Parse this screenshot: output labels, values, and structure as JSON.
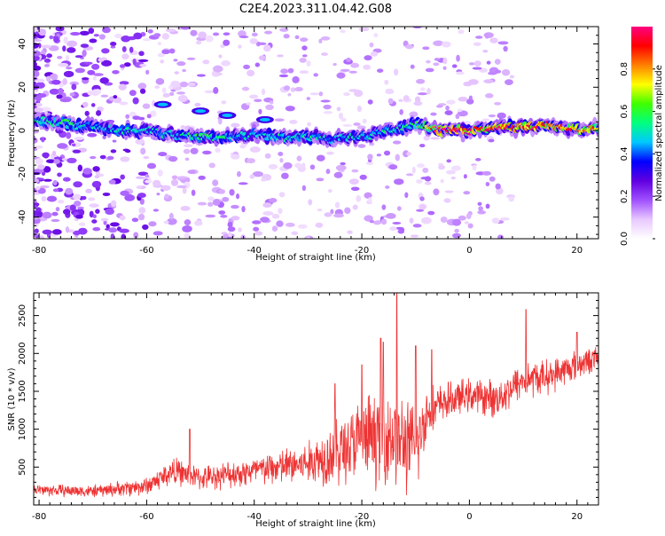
{
  "title": "C2E4.2023.311.04.42.G08",
  "chart_data": [
    {
      "type": "heatmap",
      "xlabel": "Height of straight line (km)",
      "ylabel": "Frequency (Hz)",
      "xlim": [
        -81,
        24
      ],
      "ylim": [
        -50,
        48
      ],
      "x_ticks": [
        -80,
        -60,
        -40,
        -20,
        0,
        20
      ],
      "y_ticks": [
        -40,
        -20,
        0,
        20,
        40
      ],
      "colorbar": {
        "label": "Normalized spectral amplitude",
        "range": [
          0,
          1
        ],
        "ticks": [
          0.0,
          0.2,
          0.4,
          0.6,
          0.8
        ],
        "tick_labels": [
          "0.0",
          "0.2",
          "0.4",
          "0.6",
          "0.8"
        ],
        "colors": [
          "#ffffff",
          "#e8c8ff",
          "#a050ff",
          "#6000e0",
          "#0000ff",
          "#00c8ff",
          "#00ff80",
          "#40ff00",
          "#ffff00",
          "#ff8000",
          "#ff0000",
          "#ff0080"
        ]
      },
      "ridge": {
        "x": [
          -81,
          -76,
          -72,
          -68,
          -64,
          -60,
          -55,
          -50,
          -45,
          -40,
          -35,
          -30,
          -25,
          -20,
          -15,
          -10,
          -7,
          -5,
          0,
          5,
          10,
          15,
          20,
          24
        ],
        "y": [
          4,
          4,
          2,
          1,
          0,
          0,
          -2,
          -3,
          -3,
          -2,
          -3,
          -3,
          -4,
          -3,
          0,
          3,
          1,
          0,
          0,
          1,
          2,
          2,
          1,
          1
        ],
        "amplitude": [
          0.5,
          0.55,
          0.5,
          0.45,
          0.5,
          0.45,
          0.5,
          0.55,
          0.5,
          0.45,
          0.5,
          0.5,
          0.45,
          0.5,
          0.5,
          0.55,
          0.8,
          0.95,
          0.9,
          0.9,
          0.95,
          0.9,
          0.85,
          0.8
        ]
      }
    },
    {
      "type": "line",
      "xlabel": "Height of straight line (km)",
      "ylabel": "SNR (10 * v/v)",
      "xlim": [
        -81,
        24
      ],
      "ylim": [
        0,
        2800
      ],
      "x_ticks": [
        -80,
        -60,
        -40,
        -20,
        0,
        20
      ],
      "y_ticks": [
        500,
        1000,
        1500,
        2000,
        2500
      ],
      "color": "#ee3333",
      "series_trend": {
        "x": [
          -81,
          -70,
          -60,
          -55,
          -50,
          -40,
          -30,
          -25,
          -20,
          -15,
          -10,
          -8,
          -5,
          0,
          5,
          10,
          15,
          20,
          24
        ],
        "mean": [
          200,
          180,
          250,
          450,
          350,
          450,
          550,
          700,
          850,
          950,
          700,
          1200,
          1350,
          1450,
          1400,
          1650,
          1700,
          1850,
          1950
        ],
        "noise": [
          80,
          80,
          120,
          180,
          150,
          200,
          280,
          450,
          550,
          650,
          600,
          350,
          250,
          220,
          250,
          250,
          220,
          200,
          150
        ]
      },
      "peaks": [
        {
          "x": -52,
          "y": 1000
        },
        {
          "x": -25,
          "y": 1600
        },
        {
          "x": -20,
          "y": 1850
        },
        {
          "x": -16.5,
          "y": 2200
        },
        {
          "x": -16,
          "y": 2150
        },
        {
          "x": -13.5,
          "y": 2800
        },
        {
          "x": -10,
          "y": 2100
        },
        {
          "x": -7,
          "y": 2050
        },
        {
          "x": 10.5,
          "y": 2580
        },
        {
          "x": 20,
          "y": 2280
        }
      ]
    }
  ]
}
